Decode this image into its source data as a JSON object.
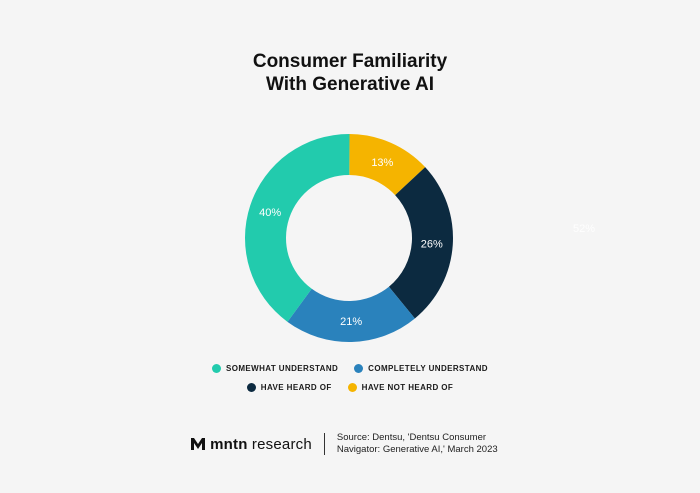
{
  "chart_data": {
    "type": "donut",
    "title_lines": [
      "Consumer Familiarity",
      "With Generative AI"
    ],
    "slices": [
      {
        "name": "HAVE NOT HEARD OF",
        "value": 13,
        "label": "13%",
        "color": "#f5b400"
      },
      {
        "name": "HAVE HEARD OF",
        "value": 26,
        "label": "26%",
        "color": "#0c2a40"
      },
      {
        "name": "COMPLETELY UNDERSTAND",
        "value": 21,
        "label": "21%",
        "color": "#2a82bc"
      },
      {
        "name": "SOMEWHAT UNDERSTAND",
        "value": 40,
        "label": "40%",
        "color": "#22cbad"
      }
    ],
    "stray_label": "52%",
    "legend_rows": [
      [
        {
          "name": "SOMEWHAT UNDERSTAND",
          "color": "#22cbad"
        },
        {
          "name": "COMPLETELY UNDERSTAND",
          "color": "#2a82bc"
        }
      ],
      [
        {
          "name": "HAVE HEARD OF",
          "color": "#0c2a40"
        },
        {
          "name": "HAVE NOT HEARD OF",
          "color": "#f5b400"
        }
      ]
    ]
  },
  "footer": {
    "brand_bold": "mntn",
    "brand_rest": " research",
    "source_line1": "Source: Dentsu, 'Dentsu Consumer",
    "source_line2": "Navigator: Generative AI,' March 2023"
  }
}
